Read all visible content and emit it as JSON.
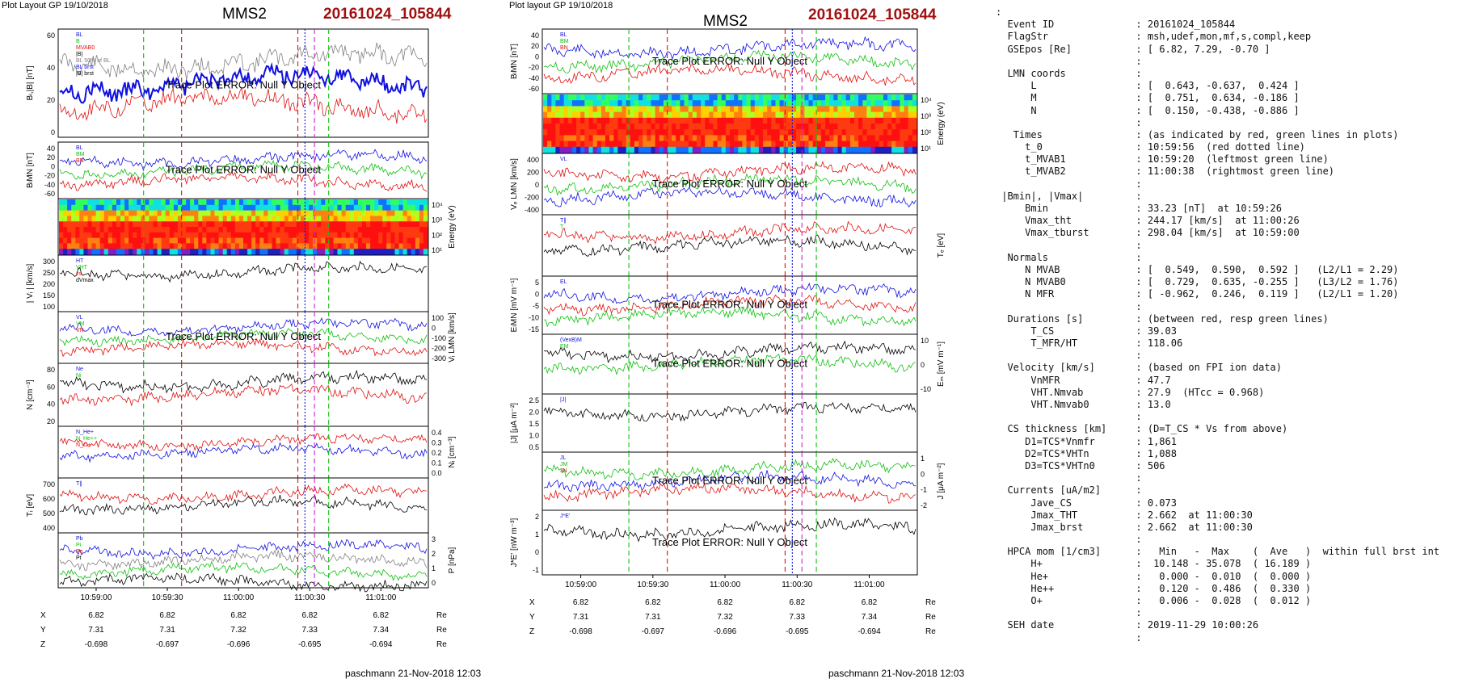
{
  "left_panel": {
    "header_small": "Plot Layout GP 19/10/2018",
    "title": "MMS2",
    "event": "20161024_105844",
    "footer": "paschmann 21-Nov-2018 12:03",
    "error_text": "Trace Plot ERROR: Null Y Object",
    "panels": [
      {
        "ylabel": "Bₗ,|B| [nT]",
        "ticks": [
          "60",
          "40",
          "20",
          "0"
        ],
        "legend": [
          "BL",
          "B",
          "MVAB0",
          "|B|",
          "BL 50% of BL",
          "BL brst",
          "|B| brst"
        ]
      },
      {
        "ylabel": "BₗMN [nT]",
        "ticks": [
          "40",
          "20",
          "0",
          "-20",
          "-40",
          "-60"
        ],
        "legend": [
          "BL",
          "BM",
          "BN"
        ]
      },
      {
        "ylabel_right": "Energy (eV)",
        "ticks_right": [
          "10⁴",
          "10³",
          "10²",
          "10¹"
        ]
      },
      {
        "ylabel": "| Vᵢ | [km/s]",
        "ticks": [
          "300",
          "250",
          "200",
          "150",
          "100"
        ],
        "legend": [
          "HT",
          "VHT",
          "cs",
          "dVmax"
        ]
      },
      {
        "ylabel_right": "Vᵢ LMN [km/s]",
        "ticks_right": [
          "100",
          "0",
          "-100",
          "-200",
          "-300"
        ],
        "legend": [
          "VL",
          "VM",
          "VN"
        ]
      },
      {
        "ylabel": "N [cm⁻³]",
        "ticks": [
          "80",
          "60",
          "40",
          "20"
        ],
        "legend": [
          "Ne",
          "Ni"
        ]
      },
      {
        "ylabel_right": "Nᵢ [cm⁻³]",
        "ticks_right": [
          "0.4",
          "0.3",
          "0.2",
          "0.1",
          "0.0"
        ],
        "legend": [
          "N_He+",
          "N_He++",
          "N_O+"
        ]
      },
      {
        "ylabel": "Tᵢ [eV]",
        "ticks": [
          "700",
          "600",
          "500",
          "400"
        ],
        "legend": [
          "T∥"
        ]
      },
      {
        "ylabel_right": "P [nPa]",
        "ticks_right": [
          "3",
          "2",
          "1",
          "0"
        ],
        "legend": [
          "Pb",
          "Pi",
          "Pe",
          "Pt"
        ]
      }
    ],
    "time_ticks": [
      "10:59:00",
      "10:59:30",
      "11:00:00",
      "11:00:30",
      "11:01:00"
    ],
    "coords": {
      "X": [
        "6.82",
        "6.82",
        "6.82",
        "6.82",
        "6.82"
      ],
      "Y": [
        "7.31",
        "7.31",
        "7.32",
        "7.33",
        "7.34"
      ],
      "Z": [
        "-0.698",
        "-0.697",
        "-0.696",
        "-0.695",
        "-0.694"
      ],
      "unit": "Re"
    }
  },
  "right_panel": {
    "header_small": "Plot layout GP 19/10/2018",
    "title": "MMS2",
    "event": "20161024_105844",
    "footer": "paschmann 21-Nov-2018 12:03",
    "error_text": "Trace Plot ERROR: Null Y Object",
    "panels": [
      {
        "ylabel": "BₗMN [nT]",
        "ticks": [
          "40",
          "20",
          "0",
          "-20",
          "-40",
          "-60"
        ],
        "legend": [
          "BL",
          "BM",
          "BN"
        ]
      },
      {
        "ylabel_right": "Energy (eV)",
        "ticks_right": [
          "10⁴",
          "10³",
          "10²",
          "10¹"
        ]
      },
      {
        "ylabel": "Vₑ LMN [km/s]",
        "ticks": [
          "400",
          "200",
          "0",
          "-200",
          "-400"
        ],
        "legend": [
          "VL"
        ]
      },
      {
        "ylabel_right": "Tₑ [eV]",
        "ticks": [],
        "legend": [
          "T∥",
          "T"
        ]
      },
      {
        "ylabel": "EₗMN [mV m⁻¹]",
        "ticks": [
          "5",
          "0",
          "-5",
          "-10",
          "-15"
        ],
        "legend": [
          "EL"
        ]
      },
      {
        "ylabel_right": "Eₘ [mV m⁻¹]",
        "ticks_right": [
          "10",
          "0",
          "-10"
        ],
        "legend": [
          "(VexB)M",
          "EM"
        ]
      },
      {
        "ylabel": "|J| [μA m⁻²]",
        "ticks": [
          "2.5",
          "2.0",
          "1.5",
          "1.0",
          "0.5"
        ],
        "legend": [
          "|J|"
        ]
      },
      {
        "ylabel_right": "J [μA m⁻²]",
        "ticks_right": [
          "1",
          "0",
          "-1",
          "-2"
        ],
        "legend": [
          "JL",
          "JM",
          "JN"
        ]
      },
      {
        "ylabel": "J*E' [nW m⁻³]",
        "ticks": [
          "2",
          "1",
          "0",
          "-1"
        ],
        "legend": [
          "J*E'"
        ]
      }
    ],
    "time_ticks": [
      "10:59:00",
      "10:59:30",
      "11:00:00",
      "11:00:30",
      "11:01:00"
    ],
    "coords": {
      "X": [
        "6.82",
        "6.82",
        "6.82",
        "6.82",
        "6.82"
      ],
      "Y": [
        "7.31",
        "7.31",
        "7.32",
        "7.33",
        "7.34"
      ],
      "Z": [
        "-0.698",
        "-0.697",
        "-0.696",
        "-0.695",
        "-0.694"
      ],
      "unit": "Re"
    }
  },
  "summary_lines": [
    ":",
    "  Event ID              : 20161024_105844",
    "  FlagStr               : msh,udef,mon,mf,s,compl,keep",
    "  GSEpos [Re]           : [ 6.82, 7.29, -0.70 ]",
    "                        :",
    "  LMN coords            :",
    "      L                 : [  0.643, -0.637,  0.424 ]",
    "      M                 : [  0.751,  0.634, -0.186 ]",
    "      N                 : [  0.150, -0.438, -0.886 ]",
    "                        :",
    "   Times                : (as indicated by red, green lines in plots)",
    "     t_0                : 10:59:56  (red dotted line)",
    "     t_MVAB1            : 10:59:20  (leftmost green line)",
    "     t_MVAB2            : 11:00:38  (rightmost green line)",
    "                        :",
    " |Bmin|, |Vmax|         :",
    "     Bmin               : 33.23 [nT]  at 10:59:26",
    "     Vmax_tht           : 244.17 [km/s]  at 11:00:26",
    "     Vmax_tburst        : 298.04 [km/s]  at 10:59:00",
    "                        :",
    "  Normals               :",
    "     N MVAB             : [  0.549,  0.590,  0.592 ]   (L2/L1 = 2.29)",
    "     N MVAB0            : [  0.729,  0.635, -0.255 ]   (L3/L2 = 1.76)",
    "     N MFR              : [ -0.962,  0.246,  0.119 ]   (L2/L1 = 1.20)",
    "                        :",
    "  Durations [s]         : (between red, resp green lines)",
    "      T_CS              : 39.03",
    "      T_MFR/HT          : 118.06",
    "                        :",
    "  Velocity [km/s]       : (based on FPI ion data)",
    "      VnMFR             : 47.7",
    "      VHT.Nmvab         : 27.9  (HTcc = 0.968)",
    "      VHT.Nmvab0        : 13.0",
    "                        :",
    "  CS thickness [km]     : (D=T_CS * Vs from above)",
    "     D1=TCS*Vnmfr       : 1,861",
    "     D2=TCS*VHTn        : 1,088",
    "     D3=TCS*VHTn0       : 506",
    "                        :",
    "  Currents [uA/m2]      :",
    "      Jave_CS           : 0.073",
    "      Jmax_THT          : 2.662  at 11:00:30",
    "      Jmax_brst         : 2.662  at 11:00:30",
    "                        :",
    "  HPCA mom [1/cm3]      :   Min   -  Max    (  Ave   )  within full brst int",
    "      H+                :  10.148 - 35.078  ( 16.189 )",
    "      He+               :   0.000 -  0.010  (  0.000 )",
    "      He++              :   0.120 -  0.486  (  0.330 )",
    "      O+                :   0.006 -  0.028  (  0.012 )",
    "                        :",
    "  SEH date              : 2019-11-29 10:00:26",
    "                        :"
  ],
  "colors": {
    "red": "#e01010",
    "green": "#10c010",
    "blue": "#1010e0",
    "black": "#000000",
    "gray": "#808080",
    "magenta": "#d020d0",
    "title_red": "#a01010"
  }
}
